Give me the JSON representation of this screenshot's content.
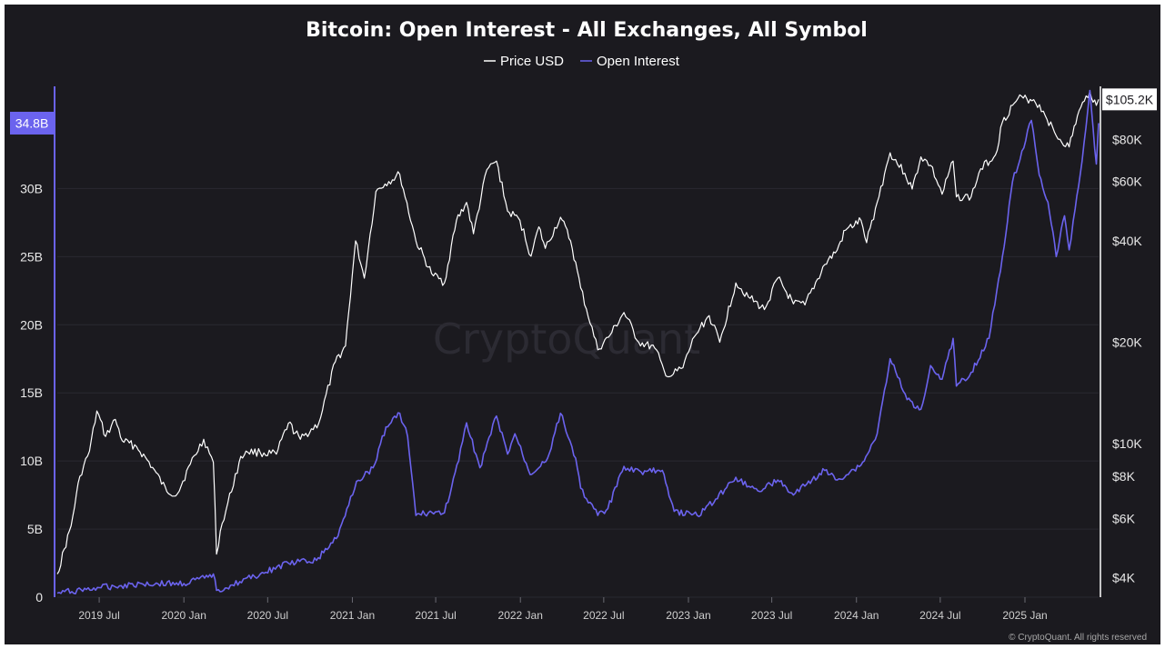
{
  "colors": {
    "background": "#1b1a1f",
    "price": "#ffffff",
    "open_interest": "#6b63ee",
    "grid": "#2a2930"
  },
  "watermark": "CryptoQuant",
  "copyright": "© CryptoQuant. All rights reserved",
  "chart_data": {
    "type": "line",
    "title": "Bitcoin: Open Interest - All Exchanges, All Symbol",
    "legend_placement": "top-center",
    "grid": true,
    "x_ticks": [
      "2019 Jul",
      "2020 Jan",
      "2020 Jul",
      "2021 Jan",
      "2021 Jul",
      "2022 Jan",
      "2022 Jul",
      "2023 Jan",
      "2023 Jul",
      "2024 Jan",
      "2024 Jul",
      "2025 Jan"
    ],
    "xlim": [
      "2019-04-01",
      "2025-06-10"
    ],
    "left_axis": {
      "ticks": [
        "0",
        "5B",
        "10B",
        "15B",
        "20B",
        "25B",
        "30B"
      ],
      "ylim": [
        0,
        37.5
      ],
      "unit": "B"
    },
    "right_axis": {
      "scale": "log",
      "ticks": [
        "$4K",
        "$6K",
        "$8K",
        "$10K",
        "$20K",
        "$40K",
        "$60K",
        "$80K"
      ],
      "tick_values": [
        4000,
        6000,
        8000,
        10000,
        20000,
        40000,
        60000,
        80000
      ],
      "ylim": [
        3500,
        115000
      ]
    },
    "current_labels": {
      "open_interest": "34.8B",
      "price": "$105.2K"
    },
    "series": [
      {
        "name": "Price USD",
        "axis": "right",
        "x": [
          "2019-04-01",
          "2019-05-01",
          "2019-05-20",
          "2019-06-10",
          "2019-06-26",
          "2019-07-15",
          "2019-08-05",
          "2019-08-20",
          "2019-09-20",
          "2019-10-25",
          "2019-11-25",
          "2019-12-18",
          "2020-01-15",
          "2020-02-13",
          "2020-03-05",
          "2020-03-12",
          "2020-03-20",
          "2020-04-30",
          "2020-05-15",
          "2020-06-15",
          "2020-07-20",
          "2020-08-15",
          "2020-09-10",
          "2020-10-20",
          "2020-11-25",
          "2020-12-17",
          "2021-01-08",
          "2021-01-27",
          "2021-02-21",
          "2021-03-13",
          "2021-04-14",
          "2021-05-19",
          "2021-06-22",
          "2021-07-20",
          "2021-08-15",
          "2021-09-06",
          "2021-09-21",
          "2021-10-20",
          "2021-11-10",
          "2021-12-04",
          "2021-12-31",
          "2022-01-24",
          "2022-02-10",
          "2022-02-24",
          "2022-03-29",
          "2022-04-20",
          "2022-05-12",
          "2022-06-18",
          "2022-07-15",
          "2022-08-14",
          "2022-09-15",
          "2022-10-20",
          "2022-11-09",
          "2022-11-21",
          "2022-12-20",
          "2023-01-14",
          "2023-02-15",
          "2023-03-10",
          "2023-04-14",
          "2023-05-15",
          "2023-06-15",
          "2023-07-14",
          "2023-08-17",
          "2023-09-11",
          "2023-10-24",
          "2023-11-20",
          "2023-12-08",
          "2024-01-11",
          "2024-01-23",
          "2024-02-15",
          "2024-03-14",
          "2024-04-15",
          "2024-05-01",
          "2024-05-20",
          "2024-06-10",
          "2024-07-05",
          "2024-07-29",
          "2024-08-05",
          "2024-09-06",
          "2024-09-27",
          "2024-10-29",
          "2024-11-13",
          "2024-12-05",
          "2024-12-17",
          "2025-01-20",
          "2025-02-10",
          "2025-03-10",
          "2025-04-07",
          "2025-04-25",
          "2025-05-10",
          "2025-05-22",
          "2025-06-05",
          "2025-06-10"
        ],
        "y": [
          4100,
          5700,
          8000,
          9500,
          12500,
          10500,
          11800,
          10200,
          9800,
          8500,
          7200,
          7100,
          8700,
          10300,
          8800,
          4700,
          5500,
          8800,
          9500,
          9400,
          9300,
          11500,
          10300,
          11500,
          17500,
          19500,
          40000,
          31000,
          56000,
          59000,
          63000,
          40000,
          32000,
          30000,
          46000,
          52000,
          42000,
          65000,
          69000,
          49000,
          46000,
          36000,
          44000,
          38000,
          47000,
          40000,
          29000,
          19000,
          21000,
          24500,
          20000,
          19200,
          16500,
          15800,
          16800,
          20800,
          24000,
          20000,
          30000,
          27000,
          25000,
          31000,
          26000,
          25800,
          34000,
          37500,
          43000,
          46000,
          39500,
          52000,
          73000,
          63500,
          57000,
          71000,
          67000,
          55000,
          69000,
          54000,
          54000,
          65500,
          72000,
          90000,
          101000,
          106000,
          105000,
          97000,
          82000,
          76000,
          94000,
          104000,
          111000,
          101000,
          105200
        ]
      },
      {
        "name": "Open Interest",
        "axis": "left",
        "x": [
          "2019-04-01",
          "2019-07-01",
          "2019-10-01",
          "2020-01-01",
          "2020-02-15",
          "2020-03-05",
          "2020-03-12",
          "2020-04-15",
          "2020-06-15",
          "2020-08-15",
          "2020-10-15",
          "2020-12-01",
          "2020-12-20",
          "2021-01-10",
          "2021-02-15",
          "2021-03-15",
          "2021-04-14",
          "2021-05-01",
          "2021-05-19",
          "2021-06-15",
          "2021-07-20",
          "2021-08-20",
          "2021-09-06",
          "2021-10-05",
          "2021-11-10",
          "2021-12-04",
          "2021-12-20",
          "2022-01-22",
          "2022-03-01",
          "2022-03-29",
          "2022-05-01",
          "2022-05-12",
          "2022-06-18",
          "2022-07-10",
          "2022-08-14",
          "2022-09-20",
          "2022-10-25",
          "2022-11-09",
          "2022-12-01",
          "2023-01-20",
          "2023-03-01",
          "2023-04-14",
          "2023-06-01",
          "2023-07-14",
          "2023-08-17",
          "2023-09-15",
          "2023-10-24",
          "2023-11-20",
          "2024-01-11",
          "2024-01-25",
          "2024-02-15",
          "2024-03-14",
          "2024-04-20",
          "2024-05-20",
          "2024-06-10",
          "2024-07-05",
          "2024-07-29",
          "2024-08-05",
          "2024-09-06",
          "2024-10-15",
          "2024-11-13",
          "2024-12-05",
          "2025-01-15",
          "2025-02-01",
          "2025-02-20",
          "2025-03-10",
          "2025-03-28",
          "2025-04-07",
          "2025-04-20",
          "2025-05-05",
          "2025-05-22",
          "2025-06-05",
          "2025-06-10"
        ],
        "y": [
          0.3,
          0.7,
          1.0,
          1.0,
          1.4,
          1.7,
          0.5,
          0.9,
          1.7,
          2.5,
          2.7,
          4.5,
          6.5,
          8.5,
          9.5,
          12.5,
          13.5,
          11.8,
          6.0,
          6.2,
          6.2,
          10.0,
          12.8,
          9.5,
          13.3,
          10.5,
          12.0,
          9.0,
          10.2,
          13.5,
          10.2,
          8.0,
          6.0,
          6.5,
          9.6,
          9.2,
          9.3,
          9.0,
          6.3,
          6.0,
          7.2,
          8.8,
          7.8,
          8.6,
          7.5,
          8.3,
          9.3,
          8.6,
          9.7,
          10.5,
          12.0,
          17.5,
          14.5,
          13.8,
          17.0,
          16.0,
          19.0,
          15.5,
          16.5,
          19.0,
          25.0,
          30.5,
          35.0,
          31.0,
          29.0,
          25.0,
          28.0,
          25.5,
          28.5,
          32.0,
          37.2,
          31.8,
          34.8
        ]
      }
    ]
  }
}
